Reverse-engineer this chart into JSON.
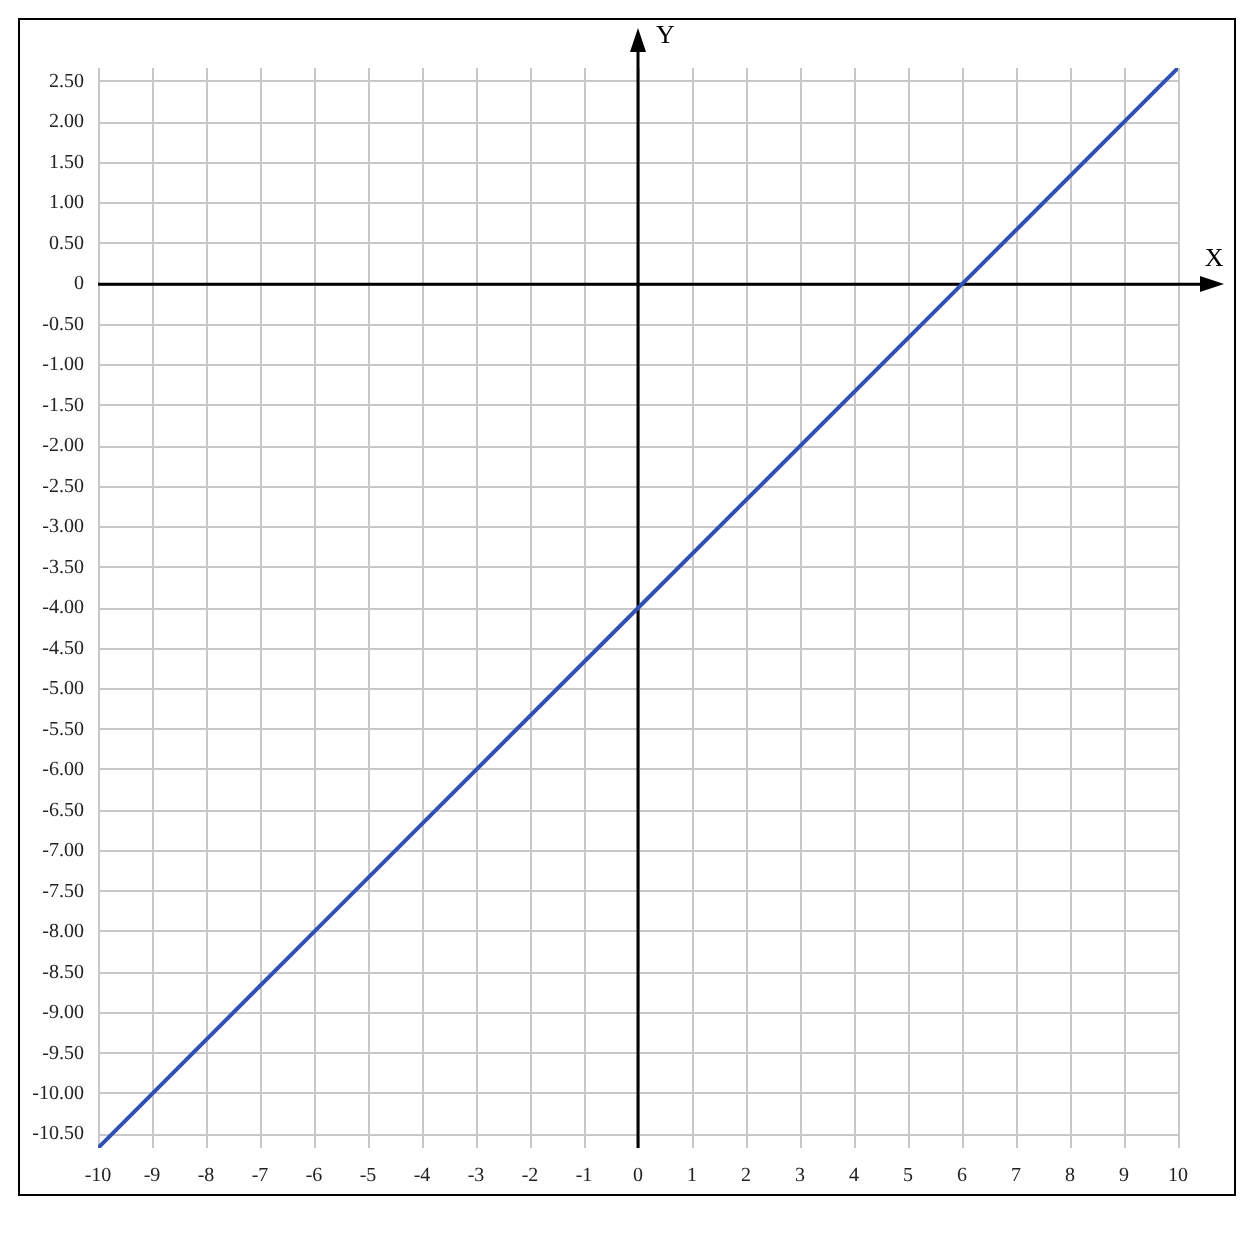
{
  "chart_data": {
    "type": "line",
    "xlabel": "X",
    "ylabel": "Y",
    "x": [
      -10,
      -6,
      0,
      6,
      10
    ],
    "series": [
      {
        "color": "#3050b4",
        "values": [
          -10.67,
          -8,
          -4,
          0,
          2.67
        ]
      }
    ],
    "xlim": [
      -10,
      10
    ],
    "xticks": [
      -10,
      -9,
      -8,
      -7,
      -6,
      -5,
      -4,
      -3,
      -2,
      -1,
      0,
      1,
      2,
      3,
      4,
      5,
      6,
      7,
      8,
      9,
      10
    ],
    "ylim": [
      -10.67,
      2.67
    ],
    "yticks": [
      {
        "value": 2.5,
        "label": "2.50"
      },
      {
        "value": 2,
        "label": "2.00"
      },
      {
        "value": 1.5,
        "label": "1.50"
      },
      {
        "value": 1,
        "label": "1.00"
      },
      {
        "value": 0.5,
        "label": "0.50"
      },
      0,
      {
        "value": -0.5,
        "label": "-0.50"
      },
      {
        "value": -1,
        "label": "-1.00"
      },
      {
        "value": -1.5,
        "label": "-1.50"
      },
      {
        "value": -2,
        "label": "-2.00"
      },
      {
        "value": -2.5,
        "label": "-2.50"
      },
      {
        "value": -3,
        "label": "-3.00"
      },
      {
        "value": -3.5,
        "label": "-3.50"
      },
      {
        "value": -4,
        "label": "-4.00"
      },
      {
        "value": -4.5,
        "label": "-4.50"
      },
      {
        "value": -5,
        "label": "-5.00"
      },
      {
        "value": -5.5,
        "label": "-5.50"
      },
      {
        "value": -6,
        "label": "-6.00"
      },
      {
        "value": -6.5,
        "label": "-6.50"
      },
      {
        "value": -7,
        "label": "-7.00"
      },
      {
        "value": -7.5,
        "label": "-7.50"
      },
      {
        "value": -8,
        "label": "-8.00"
      },
      {
        "value": -8.5,
        "label": "-8.50"
      },
      {
        "value": -9,
        "label": "-9.00"
      },
      {
        "value": -9.5,
        "label": "-9.50"
      },
      {
        "value": -10,
        "label": "-10.00"
      },
      {
        "value": -10.5,
        "label": "-10.50"
      }
    ],
    "grid": true,
    "legend": false,
    "marker": "none",
    "line_style": "solid"
  }
}
